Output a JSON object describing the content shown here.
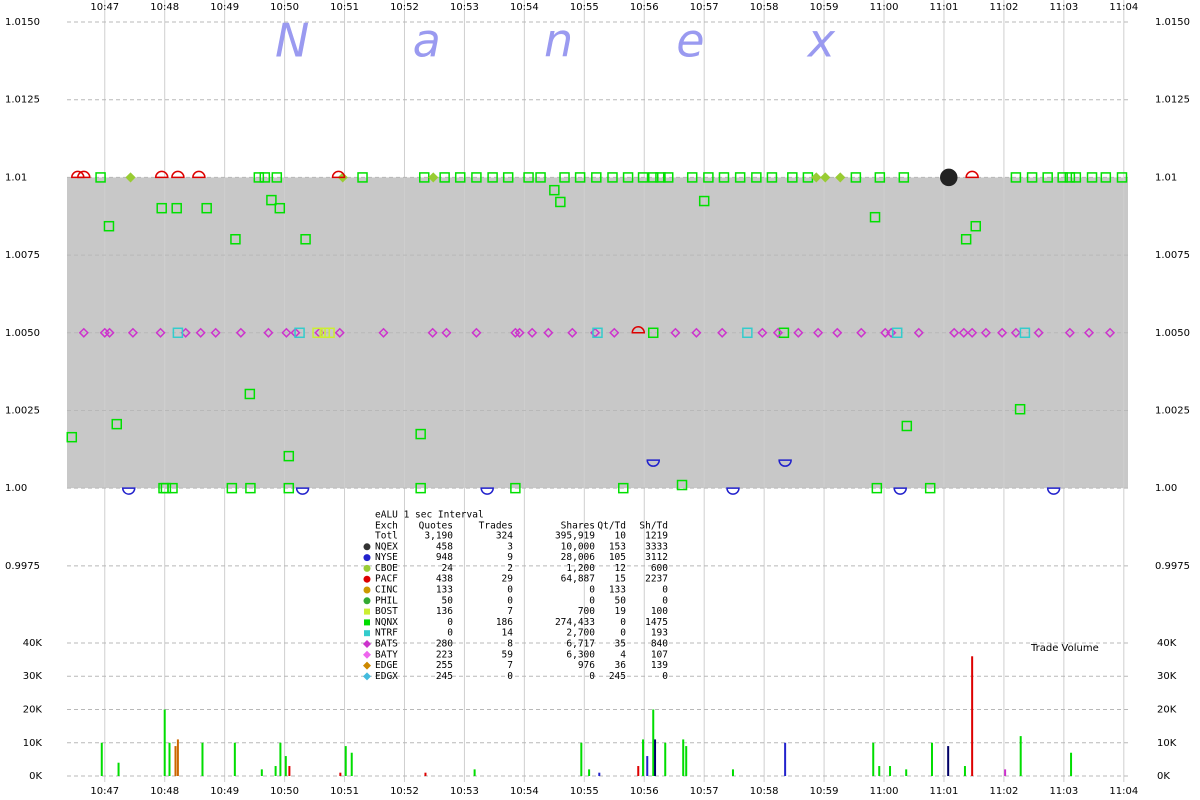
{
  "chart_data": [
    {
      "type": "scatter",
      "watermark": "Nanex",
      "xlim": [
        646.37,
        664.07
      ],
      "ylim": [
        0.9964,
        1.01571
      ],
      "xticks": [
        {
          "value": 647,
          "label": "10:47"
        },
        {
          "value": 648,
          "label": "10:48"
        },
        {
          "value": 649,
          "label": "10:49"
        },
        {
          "value": 650,
          "label": "10:50"
        },
        {
          "value": 651,
          "label": "10:51"
        },
        {
          "value": 652,
          "label": "10:52"
        },
        {
          "value": 653,
          "label": "10:53"
        },
        {
          "value": 654,
          "label": "10:54"
        },
        {
          "value": 655,
          "label": "10:55"
        },
        {
          "value": 656,
          "label": "10:56"
        },
        {
          "value": 657,
          "label": "10:57"
        },
        {
          "value": 658,
          "label": "10:58"
        },
        {
          "value": 659,
          "label": "10:59"
        },
        {
          "value": 660,
          "label": "11:00"
        },
        {
          "value": 661,
          "label": "11:01"
        },
        {
          "value": 662,
          "label": "11:02"
        },
        {
          "value": 663,
          "label": "11:03"
        },
        {
          "value": 664,
          "label": "11:04"
        }
      ],
      "yticks": [
        {
          "value": 1.015,
          "label": "1.0150"
        },
        {
          "value": 1.0125,
          "label": "1.0125"
        },
        1.01,
        {
          "value": 1.0075,
          "label": "1.0075"
        },
        {
          "value": 1.005,
          "label": "1.0050"
        },
        {
          "value": 1.0025,
          "label": "1.0025"
        },
        {
          "value": 1,
          "label": "1.00"
        },
        {
          "value": 0.9975,
          "label": "0.9975"
        }
      ],
      "grid": true,
      "band": {
        "low": 1,
        "high": 1.01,
        "color": "#c8c8c8"
      },
      "series": [
        {
          "color": "#00e000",
          "marker": "square",
          "filled": false,
          "x": [
            646.45,
            646.93,
            647.07,
            647.2,
            647.95,
            647.98,
            648.02,
            648.13,
            648.2,
            648.7,
            649.12,
            649.18,
            649.42,
            649.43,
            649.57,
            649.67,
            649.78,
            649.87,
            649.92,
            650.07,
            650.07,
            650.35,
            651.3,
            652.27,
            652.27,
            652.33,
            652.67,
            652.93,
            653.2,
            653.47,
            653.73,
            653.85,
            654.07,
            654.27,
            654.5,
            654.6,
            654.67,
            654.93,
            655.2,
            655.47,
            655.65,
            655.73,
            655.98,
            656.15,
            656.15,
            656.27,
            656.4,
            656.63,
            656.8,
            657.0,
            657.07,
            657.33,
            657.6,
            657.87,
            658.13,
            658.33,
            658.47,
            658.73,
            659.53,
            659.85,
            659.88,
            659.93,
            660.33,
            660.38,
            660.77,
            661.37,
            661.53,
            662.2,
            662.27,
            662.47,
            662.73,
            662.98,
            663.1,
            663.2,
            663.47,
            663.7,
            663.97
          ],
          "y": [
            1.00164,
            1.01,
            1.00843,
            1.00206,
            1.00901,
            1,
            1,
            1,
            1.00901,
            1.00901,
            1,
            1.00801,
            1.00303,
            1,
            1.01,
            1.01,
            1.00927,
            1.01,
            1.00901,
            1.00103,
            1,
            1.00801,
            1.01,
            1.00174,
            1,
            1.01,
            1.01,
            1.01,
            1.01,
            1.01,
            1.01,
            1,
            1.01,
            1.01,
            1.00959,
            1.00921,
            1.01,
            1.01,
            1.01,
            1.01,
            1,
            1.01,
            1.01,
            1.01,
            1.005,
            1.01,
            1.01,
            1.0001,
            1.01,
            1.00924,
            1.01,
            1.01,
            1.01,
            1.01,
            1.01,
            1.005,
            1.01,
            1.01,
            1.01,
            1.00872,
            1,
            1.01,
            1.01,
            1.002,
            1,
            1.00801,
            1.00843,
            1.01,
            1.00254,
            1.01,
            1.01,
            1.01,
            1.01,
            1.01,
            1.01,
            1.01,
            1.01
          ]
        },
        {
          "color": "#cc33cc",
          "marker": "diamond",
          "filled": false,
          "x": [
            646.65,
            647.0,
            647.08,
            647.47,
            647.93,
            648.35,
            648.6,
            648.85,
            649.27,
            649.73,
            650.03,
            650.18,
            650.58,
            650.92,
            651.65,
            652.47,
            652.7,
            653.2,
            653.85,
            653.92,
            654.13,
            654.4,
            654.8,
            655.18,
            655.5,
            656.52,
            656.87,
            657.3,
            657.97,
            658.23,
            658.57,
            658.9,
            659.22,
            659.62,
            660.02,
            660.12,
            660.58,
            661.17,
            661.33,
            661.47,
            661.7,
            661.97,
            662.2,
            662.58,
            663.1,
            663.42,
            663.77
          ],
          "y": [
            1.005,
            1.005,
            1.005,
            1.005,
            1.005,
            1.005,
            1.005,
            1.005,
            1.005,
            1.005,
            1.005,
            1.005,
            1.005,
            1.005,
            1.005,
            1.005,
            1.005,
            1.005,
            1.005,
            1.005,
            1.005,
            1.005,
            1.005,
            1.005,
            1.005,
            1.005,
            1.005,
            1.005,
            1.005,
            1.005,
            1.005,
            1.005,
            1.005,
            1.005,
            1.005,
            1.005,
            1.005,
            1.005,
            1.005,
            1.005,
            1.005,
            1.005,
            1.005,
            1.005,
            1.005,
            1.005,
            1.005
          ]
        },
        {
          "color": "#ccee33",
          "marker": "square",
          "filled": false,
          "x": [
            650.55,
            650.67,
            650.75
          ],
          "y": [
            1.005,
            1.005,
            1.005
          ]
        },
        {
          "color": "#99cc33",
          "marker": "diamond",
          "filled": true,
          "x": [
            647.43,
            650.97,
            652.48,
            658.87,
            659.02,
            659.27
          ],
          "y": [
            1.01,
            1.01,
            1.01,
            1.01,
            1.01,
            1.01
          ]
        },
        {
          "color": "#33cccc",
          "marker": "square",
          "filled": false,
          "x": [
            648.22,
            650.25,
            655.22,
            657.72,
            660.22,
            662.35
          ],
          "y": [
            1.005,
            1.005,
            1.005,
            1.005,
            1.005,
            1.005
          ]
        },
        {
          "color": "#dd0000",
          "marker": "dome",
          "filled": false,
          "x": [
            646.55,
            646.65,
            647.95,
            648.22,
            648.57,
            650.9,
            655.9,
            661.47
          ],
          "y": [
            1.01,
            1.01,
            1.01,
            1.01,
            1.01,
            1.01,
            1.005,
            1.01
          ]
        },
        {
          "color": "#222222",
          "marker": "circle",
          "filled": true,
          "x": [
            661.08
          ],
          "y": [
            1.01
          ]
        },
        {
          "color": "#2222cc",
          "marker": "cup",
          "filled": false,
          "x": [
            647.4,
            650.3,
            653.38,
            656.15,
            657.48,
            658.35,
            660.27,
            662.83
          ],
          "y": [
            1,
            1,
            1,
            1.0009,
            1,
            1.0009,
            1,
            1
          ]
        }
      ]
    },
    {
      "type": "bar",
      "title": "Trade Volume",
      "xlim": [
        646.37,
        664.07
      ],
      "ylim": [
        -1800,
        43900
      ],
      "xticks": [
        {
          "value": 647,
          "label": "10:47"
        },
        {
          "value": 648,
          "label": "10:48"
        },
        {
          "value": 649,
          "label": "10:49"
        },
        {
          "value": 650,
          "label": "10:50"
        },
        {
          "value": 651,
          "label": "10:51"
        },
        {
          "value": 652,
          "label": "10:52"
        },
        {
          "value": 653,
          "label": "10:53"
        },
        {
          "value": 654,
          "label": "10:54"
        },
        {
          "value": 655,
          "label": "10:55"
        },
        {
          "value": 656,
          "label": "10:56"
        },
        {
          "value": 657,
          "label": "10:57"
        },
        {
          "value": 658,
          "label": "10:58"
        },
        {
          "value": 659,
          "label": "10:59"
        },
        {
          "value": 660,
          "label": "11:00"
        },
        {
          "value": 661,
          "label": "11:01"
        },
        {
          "value": 662,
          "label": "11:02"
        },
        {
          "value": 663,
          "label": "11:03"
        },
        {
          "value": 664,
          "label": "11:04"
        }
      ],
      "yticks": [
        {
          "value": 40000,
          "label": "40K"
        },
        {
          "value": 30000,
          "label": "30K"
        },
        {
          "value": 20000,
          "label": "20K"
        },
        {
          "value": 10000,
          "label": "10K"
        },
        {
          "value": 0,
          "label": "0K"
        }
      ],
      "grid": true,
      "x": [
        646.95,
        647.23,
        648.0,
        648.08,
        648.18,
        648.22,
        648.63,
        649.17,
        649.62,
        649.85,
        649.93,
        650.02,
        650.08,
        650.93,
        651.02,
        651.12,
        652.35,
        653.17,
        654.95,
        655.08,
        655.25,
        655.9,
        655.98,
        656.05,
        656.15,
        656.18,
        656.35,
        656.65,
        656.7,
        657.48,
        658.35,
        659.82,
        659.92,
        660.1,
        660.37,
        660.8,
        661.07,
        661.35,
        661.47,
        662.02,
        662.28,
        663.12
      ],
      "values": [
        10000,
        4000,
        20000,
        10000,
        9000,
        11000,
        10000,
        10000,
        2000,
        3000,
        10000,
        6000,
        3000,
        1000,
        9000,
        7000,
        1000,
        2000,
        10000,
        2000,
        1000,
        3000,
        11000,
        6000,
        20000,
        11000,
        10000,
        11000,
        9000,
        2000,
        10000,
        10000,
        3000,
        3000,
        2000,
        10000,
        9000,
        3000,
        36000,
        2000,
        12000,
        7000
      ],
      "colors": [
        "#00dd00",
        "#00dd00",
        "#00dd00",
        "#00dd00",
        "#cc6600",
        "#cc6600",
        "#00dd00",
        "#00dd00",
        "#00dd00",
        "#00dd00",
        "#00dd00",
        "#00dd00",
        "#dd0000",
        "#dd0000",
        "#00dd00",
        "#00dd00",
        "#dd0000",
        "#00dd00",
        "#00dd00",
        "#00dd00",
        "#2222cc",
        "#dd0000",
        "#00dd00",
        "#2222cc",
        "#00dd00",
        "#000066",
        "#00dd00",
        "#00dd00",
        "#00dd00",
        "#00dd00",
        "#2222cc",
        "#00dd00",
        "#00dd00",
        "#00dd00",
        "#00dd00",
        "#00dd00",
        "#000066",
        "#00dd00",
        "#dd0000",
        "#cc33cc",
        "#00dd00",
        "#00dd00"
      ]
    }
  ],
  "stats": {
    "title": "eALU 1 sec Interval",
    "header": [
      "Exch",
      "Quotes",
      "Trades",
      "Shares",
      "Qt/Td",
      "Sh/Td"
    ],
    "rows": [
      {
        "cells": [
          "Totl",
          "3,190",
          "324",
          "395,919",
          "10",
          "1219"
        ]
      },
      {
        "marker": {
          "color": "#333333",
          "shape": "circle"
        },
        "cells": [
          "NQEX",
          "458",
          "3",
          "10,000",
          "153",
          "3333"
        ]
      },
      {
        "marker": {
          "color": "#2222cc",
          "shape": "circle"
        },
        "cells": [
          "NYSE",
          "948",
          "9",
          "28,006",
          "105",
          "3112"
        ]
      },
      {
        "marker": {
          "color": "#99cc33",
          "shape": "circle"
        },
        "cells": [
          "CBOE",
          "24",
          "2",
          "1,200",
          "12",
          "600"
        ]
      },
      {
        "marker": {
          "color": "#dd0000",
          "shape": "circle"
        },
        "cells": [
          "PACF",
          "438",
          "29",
          "64,887",
          "15",
          "2237"
        ]
      },
      {
        "marker": {
          "color": "#cc9900",
          "shape": "circle"
        },
        "cells": [
          "CINC",
          "133",
          "0",
          "0",
          "133",
          "0"
        ]
      },
      {
        "marker": {
          "color": "#33aa33",
          "shape": "circle"
        },
        "cells": [
          "PHIL",
          "50",
          "0",
          "0",
          "50",
          "0"
        ]
      },
      {
        "marker": {
          "color": "#ccee33",
          "shape": "square"
        },
        "cells": [
          "BOST",
          "136",
          "7",
          "700",
          "19",
          "100"
        ]
      },
      {
        "marker": {
          "color": "#00dd00",
          "shape": "square"
        },
        "cells": [
          "NQNX",
          "0",
          "186",
          "274,433",
          "0",
          "1475"
        ]
      },
      {
        "marker": {
          "color": "#33cccc",
          "shape": "square"
        },
        "cells": [
          "NTRF",
          "0",
          "14",
          "2,700",
          "0",
          "193"
        ]
      },
      {
        "marker": {
          "color": "#cc33cc",
          "shape": "diamond"
        },
        "cells": [
          "BATS",
          "280",
          "8",
          "6,717",
          "35",
          "840"
        ]
      },
      {
        "marker": {
          "color": "#ee66ee",
          "shape": "diamond"
        },
        "cells": [
          "BATY",
          "223",
          "59",
          "6,300",
          "4",
          "107"
        ]
      },
      {
        "marker": {
          "color": "#cc8800",
          "shape": "diamond"
        },
        "cells": [
          "EDGE",
          "255",
          "7",
          "976",
          "36",
          "139"
        ]
      },
      {
        "marker": {
          "color": "#44bbdd",
          "shape": "diamond"
        },
        "cells": [
          "EDGX",
          "245",
          "0",
          "0",
          "245",
          "0"
        ]
      }
    ]
  }
}
